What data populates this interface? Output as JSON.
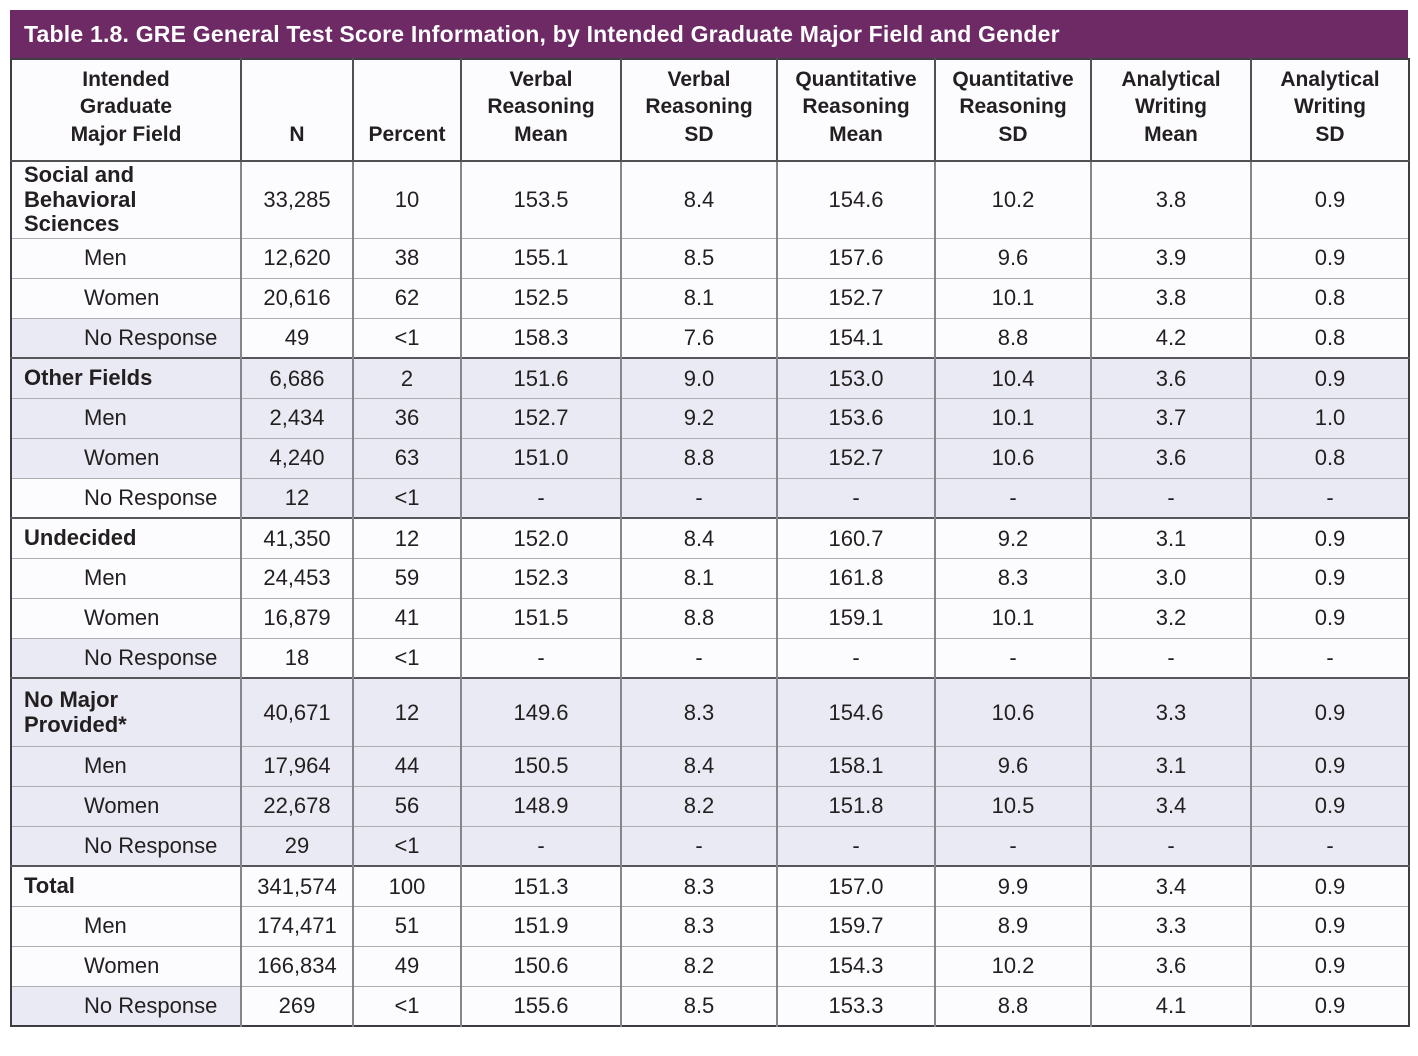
{
  "title": "Table 1.8. GRE General Test Score Information, by Intended Graduate Major Field and Gender",
  "colors": {
    "title_bar": "#6D2A65",
    "shaded_cell": "#E9EAF3",
    "unshaded_cell": "#FCFCFE",
    "text": "#231F20"
  },
  "table": {
    "columns": [
      {
        "key": "major_field",
        "lines": [
          "Intended",
          "Graduate",
          "Major Field"
        ]
      },
      {
        "key": "n",
        "lines": [
          "N"
        ]
      },
      {
        "key": "percent",
        "lines": [
          "Percent"
        ]
      },
      {
        "key": "vr_mean",
        "lines": [
          "Verbal",
          "Reasoning",
          "Mean"
        ]
      },
      {
        "key": "vr_sd",
        "lines": [
          "Verbal",
          "Reasoning",
          "SD"
        ]
      },
      {
        "key": "qr_mean",
        "lines": [
          "Quantitative",
          "Reasoning",
          "Mean"
        ]
      },
      {
        "key": "qr_sd",
        "lines": [
          "Quantitative",
          "Reasoning",
          "SD"
        ]
      },
      {
        "key": "aw_mean",
        "lines": [
          "Analytical",
          "Writing",
          "Mean"
        ]
      },
      {
        "key": "aw_sd",
        "lines": [
          "Analytical",
          "Writing",
          "SD"
        ]
      }
    ],
    "rows": [
      {
        "label": "Social and\nBehavioral Sciences",
        "level": "group",
        "tall": true,
        "group_start": false,
        "label_shaded": false,
        "cells_shaded": false,
        "cells": [
          "33,285",
          "10",
          "153.5",
          "8.4",
          "154.6",
          "10.2",
          "3.8",
          "0.9"
        ]
      },
      {
        "label": "Men",
        "level": "sub",
        "tall": false,
        "group_start": false,
        "label_shaded": false,
        "cells_shaded": false,
        "cells": [
          "12,620",
          "38",
          "155.1",
          "8.5",
          "157.6",
          "9.6",
          "3.9",
          "0.9"
        ]
      },
      {
        "label": "Women",
        "level": "sub",
        "tall": false,
        "group_start": false,
        "label_shaded": false,
        "cells_shaded": false,
        "cells": [
          "20,616",
          "62",
          "152.5",
          "8.1",
          "152.7",
          "10.1",
          "3.8",
          "0.8"
        ]
      },
      {
        "label": "No Response",
        "level": "sub",
        "tall": false,
        "group_start": false,
        "label_shaded": true,
        "cells_shaded": false,
        "cells": [
          "49",
          "<1",
          "158.3",
          "7.6",
          "154.1",
          "8.8",
          "4.2",
          "0.8"
        ]
      },
      {
        "label": "Other Fields",
        "level": "group",
        "tall": false,
        "group_start": true,
        "label_shaded": true,
        "cells_shaded": true,
        "cells": [
          "6,686",
          "2",
          "151.6",
          "9.0",
          "153.0",
          "10.4",
          "3.6",
          "0.9"
        ]
      },
      {
        "label": "Men",
        "level": "sub",
        "tall": false,
        "group_start": false,
        "label_shaded": true,
        "cells_shaded": true,
        "cells": [
          "2,434",
          "36",
          "152.7",
          "9.2",
          "153.6",
          "10.1",
          "3.7",
          "1.0"
        ]
      },
      {
        "label": "Women",
        "level": "sub",
        "tall": false,
        "group_start": false,
        "label_shaded": true,
        "cells_shaded": true,
        "cells": [
          "4,240",
          "63",
          "151.0",
          "8.8",
          "152.7",
          "10.6",
          "3.6",
          "0.8"
        ]
      },
      {
        "label": "No Response",
        "level": "sub",
        "tall": false,
        "group_start": false,
        "label_shaded": false,
        "cells_shaded": true,
        "cells": [
          "12",
          "<1",
          "-",
          "-",
          "-",
          "-",
          "-",
          "-"
        ]
      },
      {
        "label": "Undecided",
        "level": "group",
        "tall": false,
        "group_start": true,
        "label_shaded": false,
        "cells_shaded": false,
        "cells": [
          "41,350",
          "12",
          "152.0",
          "8.4",
          "160.7",
          "9.2",
          "3.1",
          "0.9"
        ]
      },
      {
        "label": "Men",
        "level": "sub",
        "tall": false,
        "group_start": false,
        "label_shaded": false,
        "cells_shaded": false,
        "cells": [
          "24,453",
          "59",
          "152.3",
          "8.1",
          "161.8",
          "8.3",
          "3.0",
          "0.9"
        ]
      },
      {
        "label": "Women",
        "level": "sub",
        "tall": false,
        "group_start": false,
        "label_shaded": false,
        "cells_shaded": false,
        "cells": [
          "16,879",
          "41",
          "151.5",
          "8.8",
          "159.1",
          "10.1",
          "3.2",
          "0.9"
        ]
      },
      {
        "label": "No Response",
        "level": "sub",
        "tall": false,
        "group_start": false,
        "label_shaded": true,
        "cells_shaded": false,
        "cells": [
          "18",
          "<1",
          "-",
          "-",
          "-",
          "-",
          "-",
          "-"
        ]
      },
      {
        "label": "No Major\nProvided*",
        "level": "group",
        "tall": true,
        "group_start": true,
        "label_shaded": true,
        "cells_shaded": true,
        "cells": [
          "40,671",
          "12",
          "149.6",
          "8.3",
          "154.6",
          "10.6",
          "3.3",
          "0.9"
        ]
      },
      {
        "label": "Men",
        "level": "sub",
        "tall": false,
        "group_start": false,
        "label_shaded": true,
        "cells_shaded": true,
        "cells": [
          "17,964",
          "44",
          "150.5",
          "8.4",
          "158.1",
          "9.6",
          "3.1",
          "0.9"
        ]
      },
      {
        "label": "Women",
        "level": "sub",
        "tall": false,
        "group_start": false,
        "label_shaded": true,
        "cells_shaded": true,
        "cells": [
          "22,678",
          "56",
          "148.9",
          "8.2",
          "151.8",
          "10.5",
          "3.4",
          "0.9"
        ]
      },
      {
        "label": "No Response",
        "level": "sub",
        "tall": false,
        "group_start": false,
        "label_shaded": true,
        "cells_shaded": true,
        "cells": [
          "29",
          "<1",
          "-",
          "-",
          "-",
          "-",
          "-",
          "-"
        ]
      },
      {
        "label": "Total",
        "level": "group",
        "tall": false,
        "group_start": true,
        "label_shaded": false,
        "cells_shaded": false,
        "cells": [
          "341,574",
          "100",
          "151.3",
          "8.3",
          "157.0",
          "9.9",
          "3.4",
          "0.9"
        ]
      },
      {
        "label": "Men",
        "level": "sub",
        "tall": false,
        "group_start": false,
        "label_shaded": false,
        "cells_shaded": false,
        "cells": [
          "174,471",
          "51",
          "151.9",
          "8.3",
          "159.7",
          "8.9",
          "3.3",
          "0.9"
        ]
      },
      {
        "label": "Women",
        "level": "sub",
        "tall": false,
        "group_start": false,
        "label_shaded": false,
        "cells_shaded": false,
        "cells": [
          "166,834",
          "49",
          "150.6",
          "8.2",
          "154.3",
          "10.2",
          "3.6",
          "0.9"
        ]
      },
      {
        "label": "No Response",
        "level": "sub",
        "tall": false,
        "group_start": false,
        "label_shaded": true,
        "cells_shaded": false,
        "cells": [
          "269",
          "<1",
          "155.6",
          "8.5",
          "153.3",
          "8.8",
          "4.1",
          "0.9"
        ]
      }
    ]
  }
}
